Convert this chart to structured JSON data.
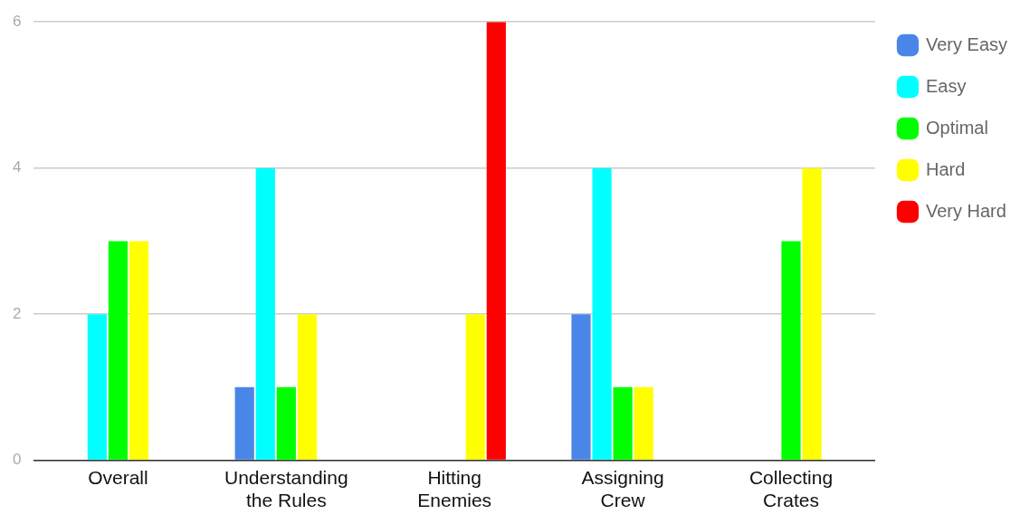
{
  "chart_data": {
    "type": "bar",
    "categories": [
      "Overall",
      "Understanding the Rules",
      "Hitting Enemies",
      "Assigning Crew",
      "Collecting Crates"
    ],
    "series": [
      {
        "name": "Very Easy",
        "color": "#4a86e8",
        "values": [
          0,
          1,
          0,
          2,
          0
        ]
      },
      {
        "name": "Easy",
        "color": "#00ffff",
        "values": [
          2,
          4,
          0,
          4,
          0
        ]
      },
      {
        "name": "Optimal",
        "color": "#00ff00",
        "values": [
          3,
          1,
          0,
          1,
          3
        ]
      },
      {
        "name": "Hard",
        "color": "#ffff00",
        "values": [
          3,
          2,
          2,
          1,
          4
        ]
      },
      {
        "name": "Very Hard",
        "color": "#ff0000",
        "values": [
          0,
          0,
          6,
          0,
          0
        ]
      }
    ],
    "ylim": [
      0,
      6
    ],
    "yticks": [
      0,
      2,
      4,
      6
    ],
    "grid": "y",
    "legend": "top right"
  }
}
